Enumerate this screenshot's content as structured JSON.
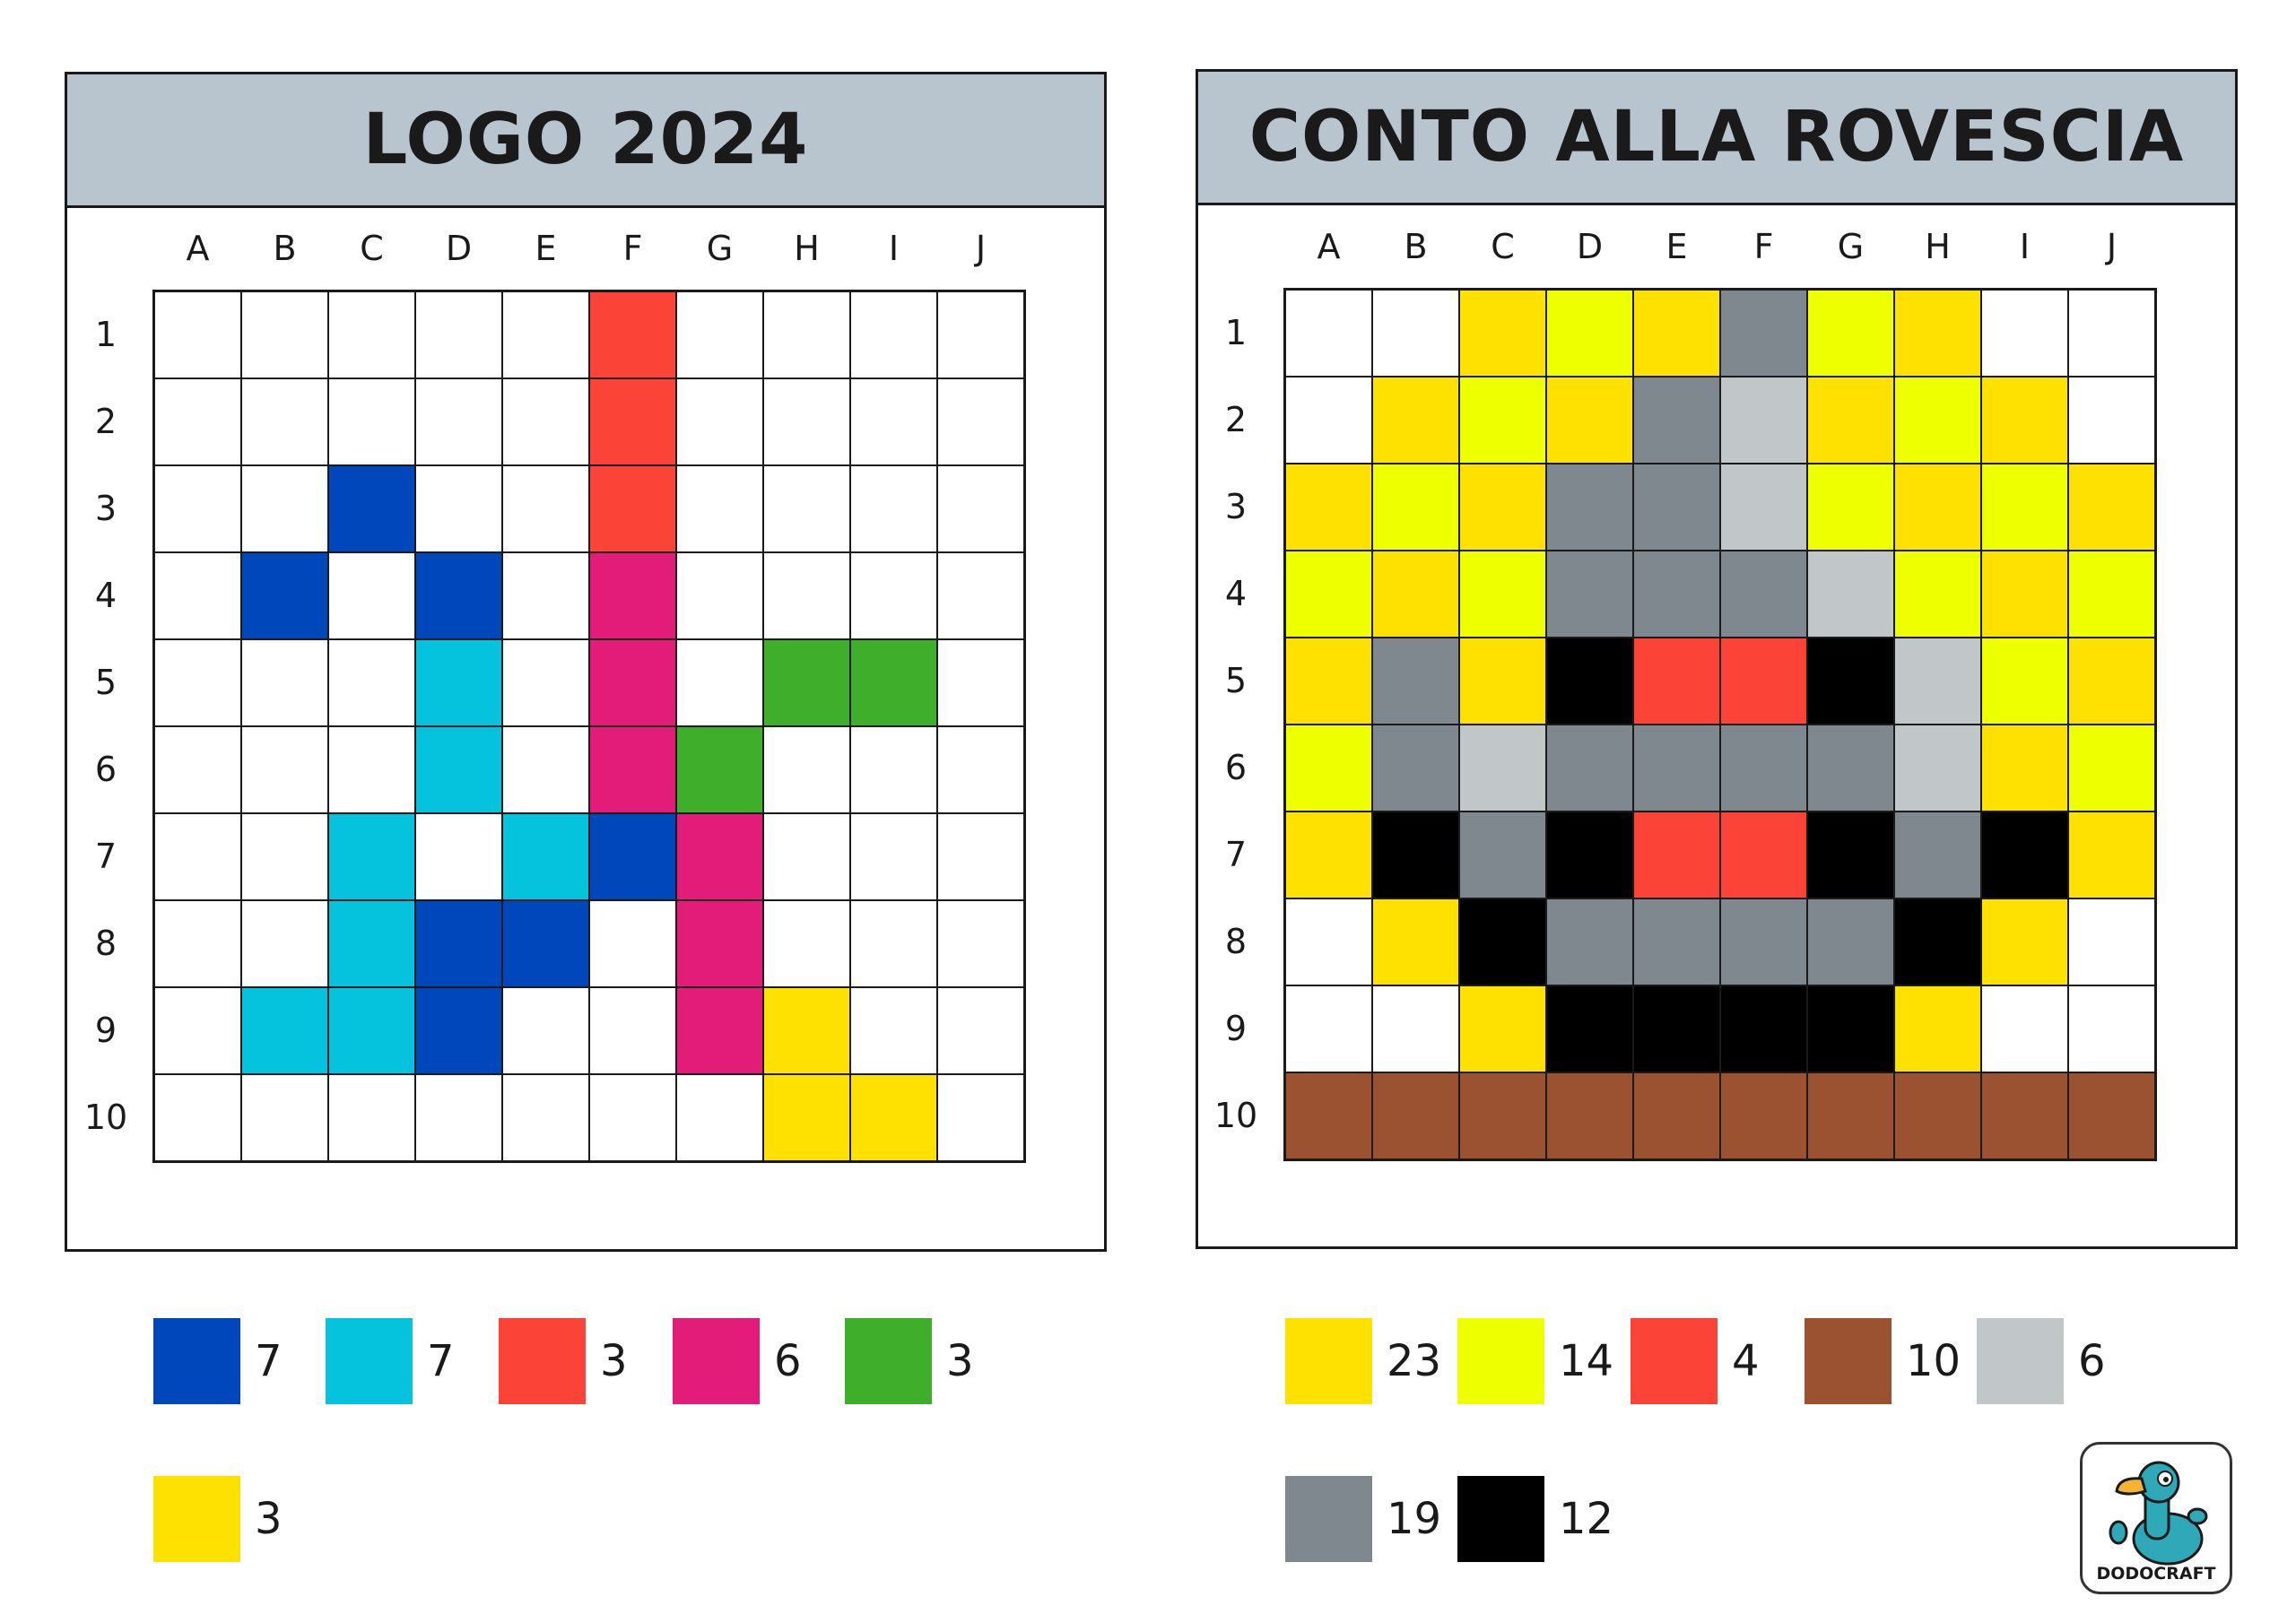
{
  "palette": {
    "W": "#ffffff",
    "blue": "#0047bb",
    "cyan": "#05c3dd",
    "red": "#fc4338",
    "pink": "#e31c79",
    "green": "#3fae2a",
    "yellow": "#ffe100",
    "lime": "#eeff00",
    "gray": "#7f888e",
    "silver": "#c1c6c8",
    "black": "#000000",
    "brown": "#9a5230"
  },
  "columns": [
    "A",
    "B",
    "C",
    "D",
    "E",
    "F",
    "G",
    "H",
    "I",
    "J"
  ],
  "rows": [
    "1",
    "2",
    "3",
    "4",
    "5",
    "6",
    "7",
    "8",
    "9",
    "10"
  ],
  "left_puzzle": {
    "title": "LOGO 2024",
    "grid": [
      [
        "W",
        "W",
        "W",
        "W",
        "W",
        "red",
        "W",
        "W",
        "W",
        "W"
      ],
      [
        "W",
        "W",
        "W",
        "W",
        "W",
        "red",
        "W",
        "W",
        "W",
        "W"
      ],
      [
        "W",
        "W",
        "blue",
        "W",
        "W",
        "red",
        "W",
        "W",
        "W",
        "W"
      ],
      [
        "W",
        "blue",
        "W",
        "blue",
        "W",
        "pink",
        "W",
        "W",
        "W",
        "W"
      ],
      [
        "W",
        "W",
        "W",
        "cyan",
        "W",
        "pink",
        "W",
        "green",
        "green",
        "W"
      ],
      [
        "W",
        "W",
        "W",
        "cyan",
        "W",
        "pink",
        "green",
        "W",
        "W",
        "W"
      ],
      [
        "W",
        "W",
        "cyan",
        "W",
        "cyan",
        "blue",
        "pink",
        "W",
        "W",
        "W"
      ],
      [
        "W",
        "W",
        "cyan",
        "blue",
        "blue",
        "W",
        "pink",
        "W",
        "W",
        "W"
      ],
      [
        "W",
        "cyan",
        "cyan",
        "blue",
        "W",
        "W",
        "pink",
        "yellow",
        "W",
        "W"
      ],
      [
        "W",
        "W",
        "W",
        "W",
        "W",
        "W",
        "W",
        "yellow",
        "yellow",
        "W"
      ]
    ],
    "legend": [
      {
        "color": "blue",
        "count": "7"
      },
      {
        "color": "cyan",
        "count": "7"
      },
      {
        "color": "red",
        "count": "3"
      },
      {
        "color": "pink",
        "count": "6"
      },
      {
        "color": "green",
        "count": "3"
      },
      {
        "color": "yellow",
        "count": "3"
      }
    ]
  },
  "right_puzzle": {
    "title": "CONTO ALLA ROVESCIA",
    "grid": [
      [
        "W",
        "W",
        "yellow",
        "lime",
        "yellow",
        "gray",
        "lime",
        "yellow",
        "W",
        "W"
      ],
      [
        "W",
        "yellow",
        "lime",
        "yellow",
        "gray",
        "silver",
        "yellow",
        "lime",
        "yellow",
        "W"
      ],
      [
        "yellow",
        "lime",
        "yellow",
        "gray",
        "gray",
        "silver",
        "lime",
        "yellow",
        "lime",
        "yellow"
      ],
      [
        "lime",
        "yellow",
        "lime",
        "gray",
        "gray",
        "gray",
        "silver",
        "lime",
        "yellow",
        "lime"
      ],
      [
        "yellow",
        "gray",
        "yellow",
        "black",
        "red",
        "red",
        "black",
        "silver",
        "lime",
        "yellow"
      ],
      [
        "lime",
        "gray",
        "silver",
        "gray",
        "gray",
        "gray",
        "gray",
        "silver",
        "yellow",
        "lime"
      ],
      [
        "yellow",
        "black",
        "gray",
        "black",
        "red",
        "red",
        "black",
        "gray",
        "black",
        "yellow"
      ],
      [
        "W",
        "yellow",
        "black",
        "gray",
        "gray",
        "gray",
        "gray",
        "black",
        "yellow",
        "W"
      ],
      [
        "W",
        "W",
        "yellow",
        "black",
        "black",
        "black",
        "black",
        "yellow",
        "W",
        "W"
      ],
      [
        "brown",
        "brown",
        "brown",
        "brown",
        "brown",
        "brown",
        "brown",
        "brown",
        "brown",
        "brown"
      ]
    ],
    "legend": [
      {
        "color": "yellow",
        "count": "23"
      },
      {
        "color": "lime",
        "count": "14"
      },
      {
        "color": "red",
        "count": "4"
      },
      {
        "color": "brown",
        "count": "10"
      },
      {
        "color": "silver",
        "count": "6"
      },
      {
        "color": "gray",
        "count": "19"
      },
      {
        "color": "black",
        "count": "12"
      }
    ]
  },
  "brand": {
    "name": "DODOCRAFT",
    "icon": "dodo-mascot-icon"
  }
}
